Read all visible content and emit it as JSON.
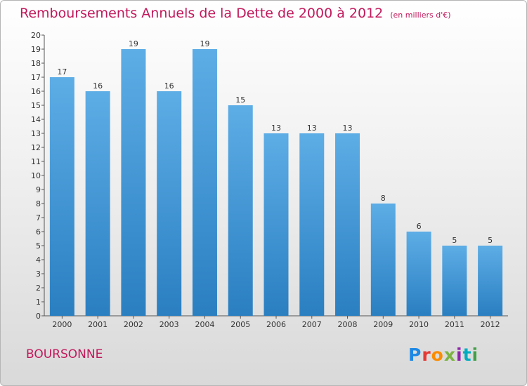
{
  "title": "Remboursements Annuels de la Dette de 2000 à 2012",
  "unit_note": "(en milliers d'€)",
  "commune": "BOURSONNE",
  "logo": {
    "text": "Proxiti",
    "letter_colors": [
      "#1e88e5",
      "#e53935",
      "#fb8c00",
      "#7cb342",
      "#8e24aa",
      "#00acc1",
      "#43a047"
    ]
  },
  "chart_data": {
    "type": "bar",
    "title": "Remboursements Annuels de la Dette de 2000 à 2012",
    "xlabel": "",
    "ylabel": "",
    "categories": [
      "2000",
      "2001",
      "2002",
      "2003",
      "2004",
      "2005",
      "2006",
      "2007",
      "2008",
      "2009",
      "2010",
      "2011",
      "2012"
    ],
    "values": [
      17,
      16,
      19,
      16,
      19,
      15,
      13,
      13,
      13,
      8,
      6,
      5,
      5
    ],
    "ylim": [
      0,
      20
    ],
    "yticks": [
      0,
      1,
      2,
      3,
      4,
      5,
      6,
      7,
      8,
      9,
      10,
      11,
      12,
      13,
      14,
      15,
      16,
      17,
      18,
      19,
      20
    ],
    "grid": false,
    "bar_color_top": "#5dade6",
    "bar_color_bottom": "#2a7fc1"
  }
}
